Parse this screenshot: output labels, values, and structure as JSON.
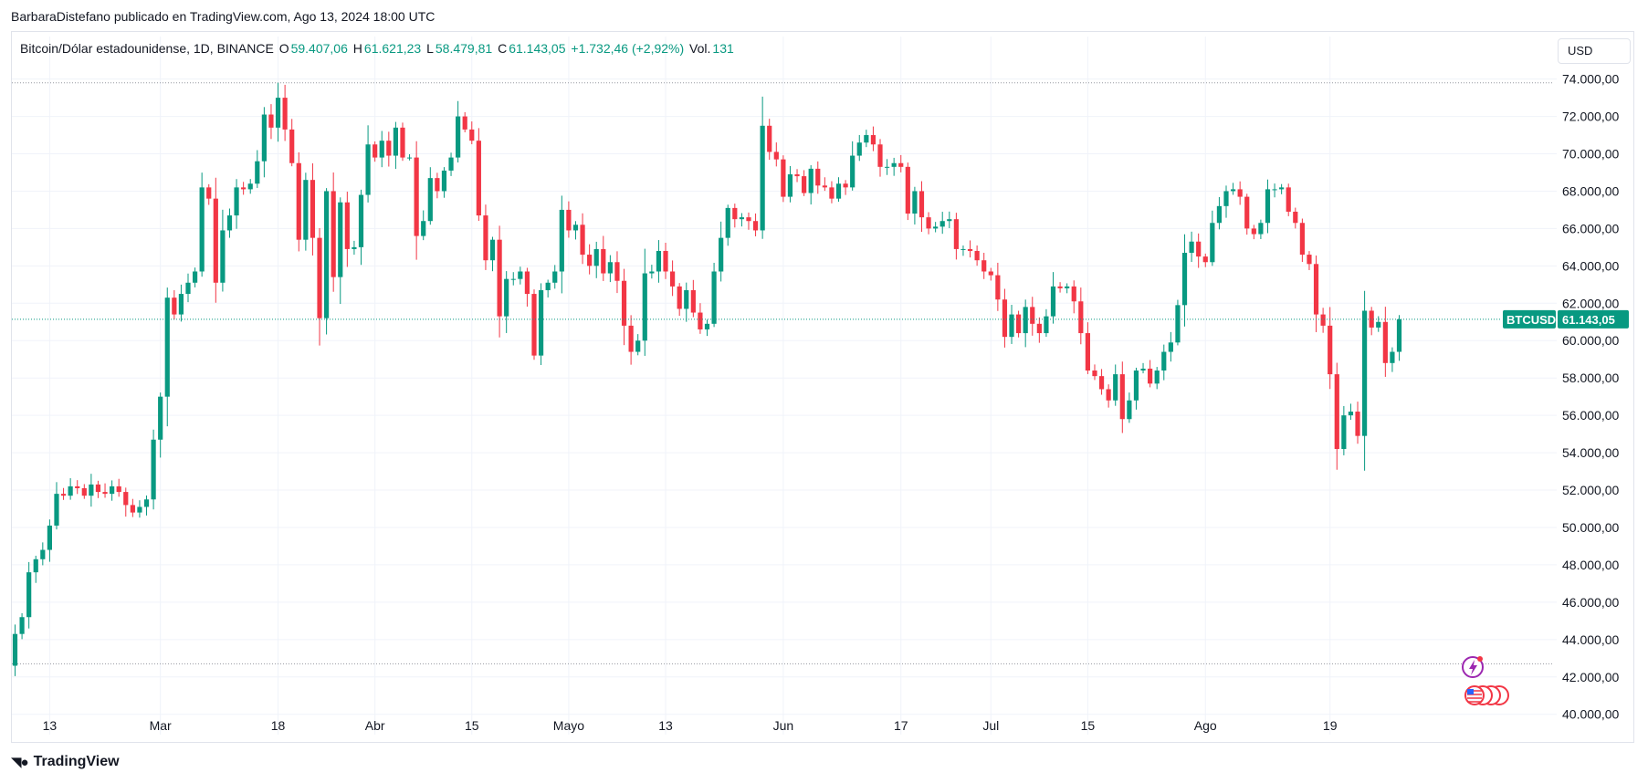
{
  "header": {
    "attribution": "BarbaraDistefano publicado en TradingView.com, Ago 13, 2024 18:00 UTC"
  },
  "legend": {
    "symbol": "Bitcoin/Dólar estadounidense, 1D, BINANCE",
    "open_label": "O",
    "open": "59.407,06",
    "high_label": "H",
    "high": "61.621,23",
    "low_label": "L",
    "low": "58.479,81",
    "close_label": "C",
    "close": "61.143,05",
    "change": "+1.732,46 (+2,92%)",
    "vol_label": "Vol.",
    "vol": "131"
  },
  "currency_button": "USD",
  "price_tag": {
    "symbol": "BTCUSD",
    "price": "61.143,05"
  },
  "brand": "TradingView",
  "colors": {
    "up": "#089981",
    "down": "#f23645",
    "grid": "#f0f3fa",
    "accent": "#2962ff"
  },
  "chart_data": {
    "type": "candlestick",
    "title": "Bitcoin/Dólar estadounidense, 1D, BINANCE",
    "y_ticks": [
      {
        "v": 74000,
        "label": "74.000,00"
      },
      {
        "v": 72000,
        "label": "72.000,00"
      },
      {
        "v": 70000,
        "label": "70.000,00"
      },
      {
        "v": 68000,
        "label": "68.000,00"
      },
      {
        "v": 66000,
        "label": "66.000,00"
      },
      {
        "v": 64000,
        "label": "64.000,00"
      },
      {
        "v": 62000,
        "label": "62.000,00"
      },
      {
        "v": 60000,
        "label": "60.000,00"
      },
      {
        "v": 58000,
        "label": "58.000,00"
      },
      {
        "v": 56000,
        "label": "56.000,00"
      },
      {
        "v": 54000,
        "label": "54.000,00"
      },
      {
        "v": 52000,
        "label": "52.000,00"
      },
      {
        "v": 50000,
        "label": "50.000,00"
      },
      {
        "v": 48000,
        "label": "48.000,00"
      },
      {
        "v": 46000,
        "label": "46.000,00"
      },
      {
        "v": 44000,
        "label": "44.000,00"
      },
      {
        "v": 42000,
        "label": "42.000,00"
      },
      {
        "v": 40000,
        "label": "40.000,00"
      }
    ],
    "y_range": [
      39400,
      75300
    ],
    "x_ticks": [
      {
        "i": 5,
        "label": "13"
      },
      {
        "i": 21,
        "label": "Mar"
      },
      {
        "i": 38,
        "label": "18"
      },
      {
        "i": 52,
        "label": "Abr"
      },
      {
        "i": 66,
        "label": "15"
      },
      {
        "i": 80,
        "label": "Mayo"
      },
      {
        "i": 94,
        "label": "13"
      },
      {
        "i": 111,
        "label": "Jun"
      },
      {
        "i": 128,
        "label": "17"
      },
      {
        "i": 141,
        "label": "Jul"
      },
      {
        "i": 155,
        "label": "15"
      },
      {
        "i": 172,
        "label": "Ago"
      },
      {
        "i": 190,
        "label": "19"
      }
    ],
    "hlines": [
      73800,
      42700
    ],
    "last_close": 61143.05,
    "closes": [
      44300,
      45200,
      47600,
      48300,
      48800,
      50100,
      51800,
      51700,
      52200,
      52100,
      51700,
      52300,
      51900,
      51800,
      52200,
      51900,
      51200,
      50800,
      51100,
      51500,
      54700,
      57000,
      62300,
      61400,
      62500,
      63100,
      63700,
      68200,
      67600,
      63100,
      65900,
      66700,
      68200,
      68100,
      68400,
      69600,
      72100,
      71400,
      73000,
      71300,
      69500,
      65400,
      68600,
      65500,
      61200,
      68000,
      63400,
      67400,
      64900,
      65000,
      67800,
      70500,
      69800,
      70700,
      69900,
      71400,
      69800,
      69800,
      65600,
      66400,
      68700,
      68000,
      69100,
      69800,
      72000,
      71300,
      70700,
      66700,
      64300,
      65400,
      61300,
      63300,
      63300,
      63700,
      62500,
      59200,
      62700,
      63100,
      63700,
      67000,
      65900,
      66200,
      64600,
      64000,
      64900,
      63600,
      64200,
      63200,
      60800,
      59400,
      60000,
      63600,
      63700,
      64800,
      63700,
      62900,
      61700,
      62700,
      61500,
      60600,
      60900,
      63700,
      65500,
      67100,
      66500,
      66600,
      66400,
      65900,
      71500,
      70100,
      69700,
      67700,
      68900,
      68800,
      67900,
      69200,
      68300,
      68200,
      67600,
      68400,
      68200,
      69900,
      70600,
      71000,
      70500,
      69300,
      69300,
      69500,
      69300,
      66800,
      68000,
      66600,
      66000,
      66100,
      66400,
      66500,
      64900,
      64900,
      64800,
      64300,
      63700,
      63500,
      62200,
      60200,
      61400,
      60400,
      61800,
      60900,
      60400,
      61300,
      62900,
      62800,
      62900,
      62100,
      60400,
      58400,
      58100,
      57400,
      56800,
      58200,
      55800,
      56800,
      58400,
      58500,
      57700,
      58400,
      59400,
      59900,
      61900,
      64700,
      65300,
      64500,
      64200,
      66300,
      67200,
      68000,
      68100,
      67700,
      66000,
      65700,
      66300,
      68100,
      68100,
      68200,
      66900,
      66300,
      64600,
      64100,
      61400,
      60800,
      58200,
      54200,
      56000,
      56200,
      54900,
      61600,
      60700,
      61000,
      58800,
      59400,
      61143
    ]
  }
}
